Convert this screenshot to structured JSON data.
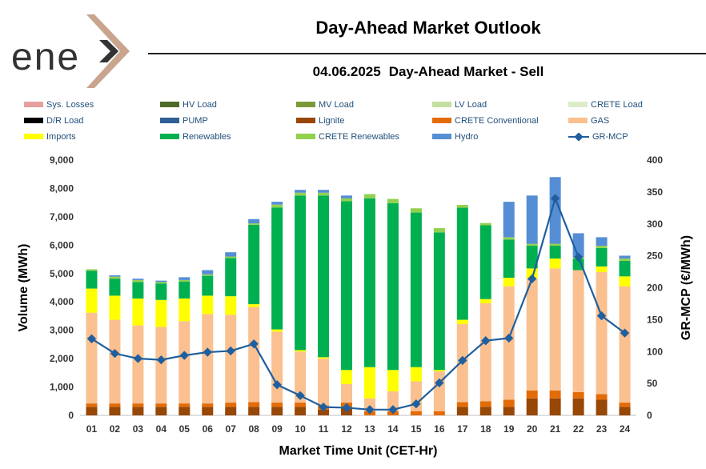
{
  "header": {
    "logo_text": "ene",
    "title": "Day-Ahead Market Outlook",
    "date": "04.06.2025",
    "subtitle": "Day-Ahead Market - Sell"
  },
  "chart_data": {
    "type": "bar",
    "stacked": true,
    "xlabel": "Market Time Unit (CET-Hr)",
    "ylabel": "Volume (MWh)",
    "y2label": "GR-MCP (€/MWh)",
    "ylim": [
      0,
      9000
    ],
    "y2lim": [
      0,
      400
    ],
    "yticks": [
      "0",
      "1,000",
      "2,000",
      "3,000",
      "4,000",
      "5,000",
      "6,000",
      "7,000",
      "8,000",
      "9,000"
    ],
    "y2ticks": [
      "0",
      "50",
      "100",
      "150",
      "200",
      "250",
      "300",
      "350",
      "400"
    ],
    "categories": [
      "01",
      "02",
      "03",
      "04",
      "05",
      "06",
      "07",
      "08",
      "09",
      "10",
      "11",
      "12",
      "13",
      "14",
      "15",
      "16",
      "17",
      "18",
      "19",
      "20",
      "21",
      "22",
      "23",
      "24"
    ],
    "legend": [
      {
        "name": "Sys. Losses",
        "color": "#e6a0a0",
        "kind": "bar"
      },
      {
        "name": "HV Load",
        "color": "#4e6b2a",
        "kind": "bar"
      },
      {
        "name": "MV Load",
        "color": "#7a9a3a",
        "kind": "bar"
      },
      {
        "name": "LV Load",
        "color": "#c5dfa0",
        "kind": "bar"
      },
      {
        "name": "CRETE Load",
        "color": "#dcebc8",
        "kind": "bar"
      },
      {
        "name": "D/R Load",
        "color": "#000000",
        "kind": "bar"
      },
      {
        "name": "PUMP",
        "color": "#2f5f96",
        "kind": "bar"
      },
      {
        "name": "Lignite",
        "color": "#974706",
        "kind": "bar"
      },
      {
        "name": "CRETE Conventional",
        "color": "#e36c09",
        "kind": "bar"
      },
      {
        "name": "GAS",
        "color": "#fac090",
        "kind": "bar"
      },
      {
        "name": "Imports",
        "color": "#ffff00",
        "kind": "bar"
      },
      {
        "name": "Renewables",
        "color": "#00b050",
        "kind": "bar"
      },
      {
        "name": "CRETE Renewables",
        "color": "#92d050",
        "kind": "bar"
      },
      {
        "name": "Hydro",
        "color": "#558ed5",
        "kind": "bar"
      },
      {
        "name": "GR-MCP",
        "color": "#1f5f9e",
        "kind": "line"
      }
    ],
    "series": [
      {
        "name": "Lignite",
        "color": "#974706",
        "values": [
          300,
          300,
          300,
          300,
          300,
          300,
          300,
          300,
          300,
          300,
          200,
          300,
          0,
          0,
          0,
          0,
          300,
          300,
          300,
          600,
          600,
          600,
          550,
          300
        ]
      },
      {
        "name": "CRETE Conventional",
        "color": "#e36c09",
        "values": [
          120,
          120,
          120,
          120,
          120,
          120,
          150,
          170,
          150,
          150,
          150,
          150,
          150,
          150,
          150,
          150,
          170,
          200,
          250,
          280,
          280,
          220,
          200,
          150
        ]
      },
      {
        "name": "GAS",
        "color": "#fac090",
        "values": [
          3200,
          2950,
          2750,
          2700,
          2900,
          3150,
          3100,
          3350,
          2500,
          1800,
          1650,
          650,
          450,
          700,
          1050,
          1400,
          2750,
          3450,
          4000,
          3950,
          4300,
          4300,
          4300,
          4100
        ]
      },
      {
        "name": "Imports",
        "color": "#ffff00",
        "values": [
          850,
          850,
          950,
          950,
          800,
          650,
          650,
          100,
          80,
          50,
          50,
          500,
          1100,
          750,
          500,
          50,
          150,
          150,
          300,
          350,
          350,
          0,
          200,
          350
        ]
      },
      {
        "name": "Renewables",
        "color": "#00b050",
        "values": [
          630,
          600,
          580,
          580,
          600,
          700,
          1350,
          2800,
          4300,
          5450,
          5700,
          5950,
          5950,
          5880,
          5450,
          4850,
          3950,
          2600,
          1350,
          800,
          450,
          400,
          650,
          550
        ]
      },
      {
        "name": "CRETE Renewables",
        "color": "#92d050",
        "values": [
          50,
          70,
          70,
          50,
          50,
          50,
          50,
          50,
          100,
          100,
          100,
          100,
          150,
          150,
          150,
          150,
          100,
          80,
          80,
          70,
          70,
          50,
          80,
          80
        ]
      },
      {
        "name": "Hydro",
        "color": "#558ed5",
        "values": [
          0,
          50,
          50,
          50,
          100,
          150,
          150,
          150,
          100,
          100,
          100,
          100,
          0,
          0,
          0,
          0,
          0,
          0,
          1250,
          1700,
          2350,
          850,
          300,
          100
        ]
      }
    ],
    "line": {
      "name": "GR-MCP",
      "color": "#1f5f9e",
      "values": [
        120,
        97,
        89,
        87,
        94,
        99,
        101,
        112,
        48,
        31,
        13,
        12,
        9,
        9,
        18,
        51,
        86,
        117,
        121,
        214,
        340,
        248,
        156,
        129
      ]
    }
  }
}
